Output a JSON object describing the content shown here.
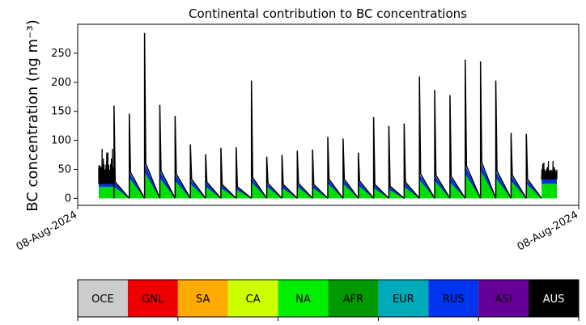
{
  "chart_data": {
    "type": "area",
    "title": "Continental contribution to BC concentrations",
    "ylabel": "BC concentration (ng m⁻³)",
    "xlabel": "",
    "ylim": [
      -12,
      300
    ],
    "x_tick_labels": [
      "08-Aug-2024",
      "08-Aug-2024"
    ],
    "y_ticks": [
      0,
      50,
      100,
      150,
      200,
      250
    ],
    "grid": false,
    "stack_order": [
      "NA",
      "RUS",
      "AUS"
    ],
    "series_colors": {
      "NA": "#00dd00",
      "RUS": "#0033dd",
      "AUS": "#000000"
    },
    "segments": [
      {
        "bottom": 0,
        "na": 20,
        "rus": 5,
        "noisy": true,
        "peak": 87
      },
      {
        "bottom": 0,
        "na": 20,
        "rus": 8,
        "peak": 160
      },
      {
        "bottom": 0,
        "na": 35,
        "rus": 10,
        "peak": 146
      },
      {
        "bottom": 0,
        "na": 45,
        "rus": 15,
        "peak": 285
      },
      {
        "bottom": 0,
        "na": 35,
        "rus": 12,
        "peak": 161
      },
      {
        "bottom": 0,
        "na": 30,
        "rus": 12,
        "peak": 142
      },
      {
        "bottom": 0,
        "na": 25,
        "rus": 8,
        "peak": 93
      },
      {
        "bottom": 0,
        "na": 20,
        "rus": 8,
        "peak": 76
      },
      {
        "bottom": 0,
        "na": 18,
        "rus": 6,
        "peak": 87
      },
      {
        "bottom": 0,
        "na": 15,
        "rus": 5,
        "peak": 88
      },
      {
        "bottom": 0,
        "na": 28,
        "rus": 8,
        "peak": 203
      },
      {
        "bottom": 0,
        "na": 20,
        "rus": 6,
        "peak": 72
      },
      {
        "bottom": 0,
        "na": 18,
        "rus": 6,
        "peak": 75
      },
      {
        "bottom": 0,
        "na": 20,
        "rus": 6,
        "peak": 82
      },
      {
        "bottom": 0,
        "na": 18,
        "rus": 6,
        "peak": 84
      },
      {
        "bottom": 0,
        "na": 25,
        "rus": 8,
        "peak": 106
      },
      {
        "bottom": 0,
        "na": 25,
        "rus": 8,
        "peak": 103
      },
      {
        "bottom": 0,
        "na": 22,
        "rus": 8,
        "peak": 79
      },
      {
        "bottom": 0,
        "na": 18,
        "rus": 6,
        "peak": 140
      },
      {
        "bottom": 0,
        "na": 15,
        "rus": 6,
        "peak": 125
      },
      {
        "bottom": 0,
        "na": 20,
        "rus": 8,
        "peak": 129
      },
      {
        "bottom": 0,
        "na": 32,
        "rus": 10,
        "peak": 210
      },
      {
        "bottom": 0,
        "na": 30,
        "rus": 10,
        "peak": 187
      },
      {
        "bottom": 0,
        "na": 28,
        "rus": 10,
        "peak": 178
      },
      {
        "bottom": 0,
        "na": 42,
        "rus": 14,
        "peak": 239
      },
      {
        "bottom": 0,
        "na": 48,
        "rus": 14,
        "peak": 236
      },
      {
        "bottom": 0,
        "na": 35,
        "rus": 12,
        "peak": 203
      },
      {
        "bottom": 0,
        "na": 30,
        "rus": 10,
        "peak": 113
      },
      {
        "bottom": 0,
        "na": 25,
        "rus": 8,
        "peak": 111
      },
      {
        "bottom": 0,
        "na": 25,
        "rus": 8,
        "noisy": true,
        "peak": 65
      }
    ]
  },
  "legend": {
    "items": [
      {
        "label": "OCE",
        "color": "#cccccc",
        "text_color": "#000000"
      },
      {
        "label": "GNL",
        "color": "#ee0000",
        "text_color": "#000000"
      },
      {
        "label": "SA",
        "color": "#ffaa00",
        "text_color": "#000000"
      },
      {
        "label": "CA",
        "color": "#ccff00",
        "text_color": "#000000"
      },
      {
        "label": "NA",
        "color": "#00ee00",
        "text_color": "#000000"
      },
      {
        "label": "AFR",
        "color": "#009900",
        "text_color": "#000000"
      },
      {
        "label": "EUR",
        "color": "#00aabb",
        "text_color": "#000000"
      },
      {
        "label": "RUS",
        "color": "#0033ee",
        "text_color": "#000000"
      },
      {
        "label": "ASI",
        "color": "#660099",
        "text_color": "#000000"
      },
      {
        "label": "AUS",
        "color": "#000000",
        "text_color": "#ffffff"
      }
    ]
  }
}
